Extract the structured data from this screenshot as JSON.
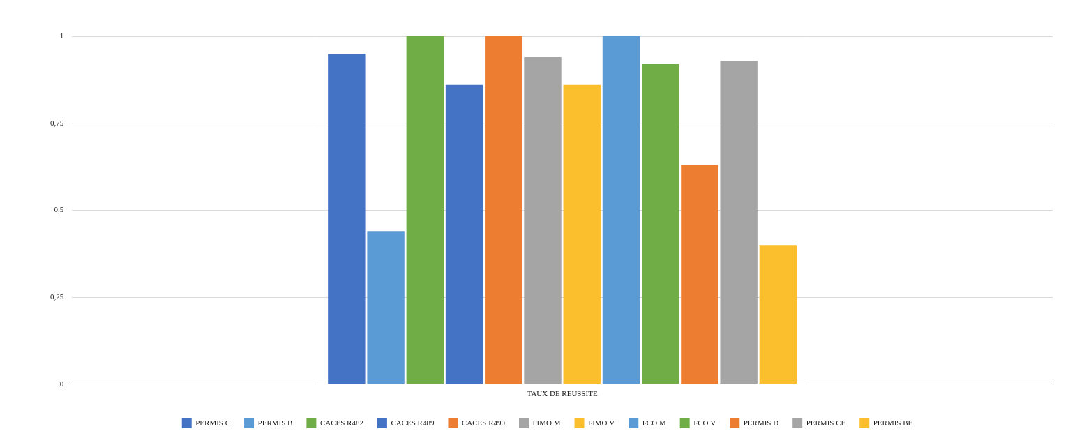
{
  "chart_data": {
    "type": "bar",
    "categories": [
      "TAUX DE REUSSITE"
    ],
    "series": [
      {
        "name": "PERMIS C",
        "color": "#4472c4",
        "values": [
          0.95
        ]
      },
      {
        "name": "PERMIS B",
        "color": "#5b9bd5",
        "values": [
          0.44
        ]
      },
      {
        "name": "CACES R482",
        "color": "#70ad47",
        "values": [
          1
        ]
      },
      {
        "name": "CACES R489",
        "color": "#4472c4",
        "values": [
          0.86
        ]
      },
      {
        "name": "CACES R490",
        "color": "#ed7d31",
        "values": [
          1
        ]
      },
      {
        "name": "FIMO M",
        "color": "#a5a5a5",
        "values": [
          0.94
        ]
      },
      {
        "name": "FIMO V",
        "color": "#fbbf2d",
        "values": [
          0.86
        ]
      },
      {
        "name": "FCO M",
        "color": "#5b9bd5",
        "values": [
          1
        ]
      },
      {
        "name": "FCO V",
        "color": "#70ad47",
        "values": [
          0.92
        ]
      },
      {
        "name": "PERMIS D",
        "color": "#ed7d31",
        "values": [
          0.63
        ]
      },
      {
        "name": "PERMIS CE",
        "color": "#a5a5a5",
        "values": [
          0.93
        ]
      },
      {
        "name": "PERMIS BE",
        "color": "#fbbf2d",
        "values": [
          0.4
        ]
      }
    ],
    "ylim": [
      0,
      1
    ],
    "yticks": [
      0,
      {
        "value": 0.25,
        "label": "0,25"
      },
      {
        "value": 0.5,
        "label": "0,5"
      },
      {
        "value": 0.75,
        "label": "0,75"
      },
      1
    ],
    "grid": true,
    "legend": "bottom"
  }
}
